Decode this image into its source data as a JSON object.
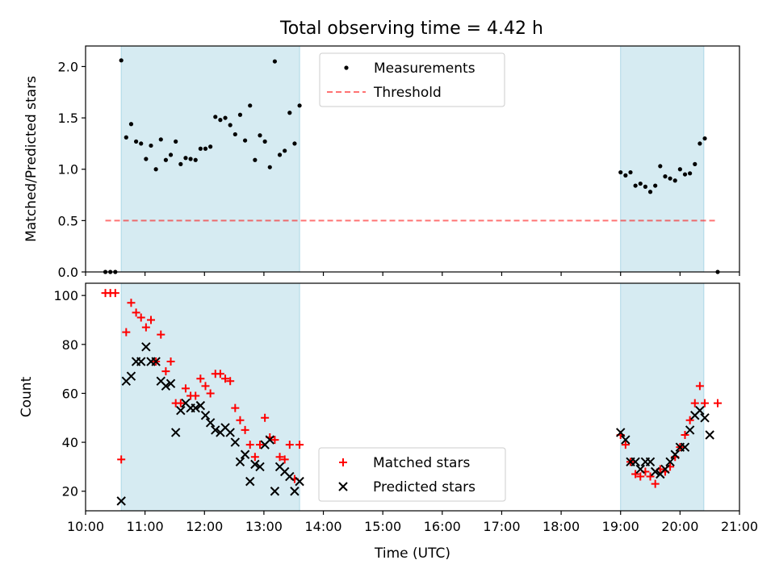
{
  "figure_title": "Total observing time = 4.42 h",
  "colors": {
    "shade": "#add8e6",
    "measurement": "#000000",
    "threshold": "#ff0000",
    "matched": "#ff0000",
    "predicted": "#000000"
  },
  "chart_data": [
    {
      "type": "scatter",
      "title": "Total observing time = 4.42 h",
      "xlabel": "",
      "ylabel": "Matched/Predicted stars",
      "xlim": [
        "10:00",
        "21:00"
      ],
      "ylim": [
        0,
        2.2
      ],
      "yticks": [
        "0.0",
        "0.5",
        "1.0",
        "1.5",
        "2.0"
      ],
      "shaded_intervals": [
        [
          "10:36",
          "13:36"
        ],
        [
          "19:00",
          "20:24"
        ]
      ],
      "legend_position": "upper center",
      "legend": [
        "Measurements",
        "Threshold"
      ],
      "threshold": {
        "name": "Threshold",
        "value": 0.5,
        "x_range": [
          "10:20",
          "20:38"
        ],
        "style": "dashed"
      },
      "series": [
        {
          "name": "Measurements",
          "points": [
            [
              "10:20",
              0.0
            ],
            [
              "10:25",
              0.0
            ],
            [
              "10:30",
              0.0
            ],
            [
              "10:36",
              2.06
            ],
            [
              "10:41",
              1.31
            ],
            [
              "10:46",
              1.44
            ],
            [
              "10:51",
              1.27
            ],
            [
              "10:56",
              1.25
            ],
            [
              "11:01",
              1.1
            ],
            [
              "11:06",
              1.23
            ],
            [
              "11:11",
              1.0
            ],
            [
              "11:16",
              1.29
            ],
            [
              "11:21",
              1.09
            ],
            [
              "11:26",
              1.14
            ],
            [
              "11:31",
              1.27
            ],
            [
              "11:36",
              1.05
            ],
            [
              "11:41",
              1.11
            ],
            [
              "11:46",
              1.1
            ],
            [
              "11:51",
              1.09
            ],
            [
              "11:56",
              1.2
            ],
            [
              "12:01",
              1.2
            ],
            [
              "12:06",
              1.22
            ],
            [
              "12:11",
              1.51
            ],
            [
              "12:16",
              1.48
            ],
            [
              "12:21",
              1.5
            ],
            [
              "12:26",
              1.43
            ],
            [
              "12:31",
              1.34
            ],
            [
              "12:36",
              1.53
            ],
            [
              "12:41",
              1.28
            ],
            [
              "12:46",
              1.62
            ],
            [
              "12:51",
              1.09
            ],
            [
              "12:56",
              1.33
            ],
            [
              "13:01",
              1.27
            ],
            [
              "13:06",
              1.02
            ],
            [
              "13:11",
              2.05
            ],
            [
              "13:16",
              1.14
            ],
            [
              "13:21",
              1.18
            ],
            [
              "13:26",
              1.55
            ],
            [
              "13:31",
              1.25
            ],
            [
              "13:36",
              1.62
            ],
            [
              "19:00",
              0.97
            ],
            [
              "19:05",
              0.94
            ],
            [
              "19:10",
              0.97
            ],
            [
              "19:15",
              0.84
            ],
            [
              "19:20",
              0.86
            ],
            [
              "19:25",
              0.83
            ],
            [
              "19:30",
              0.78
            ],
            [
              "19:35",
              0.84
            ],
            [
              "19:40",
              1.03
            ],
            [
              "19:45",
              0.93
            ],
            [
              "19:50",
              0.91
            ],
            [
              "19:55",
              0.89
            ],
            [
              "20:00",
              1.0
            ],
            [
              "20:05",
              0.95
            ],
            [
              "20:10",
              0.96
            ],
            [
              "20:15",
              1.05
            ],
            [
              "20:20",
              1.25
            ],
            [
              "20:25",
              1.3
            ],
            [
              "20:38",
              0.0
            ]
          ]
        }
      ]
    },
    {
      "type": "scatter",
      "title": "",
      "xlabel": "Time (UTC)",
      "ylabel": "Count",
      "xlim": [
        "10:00",
        "21:00"
      ],
      "ylim": [
        12,
        105
      ],
      "xticks": [
        "10:00",
        "11:00",
        "12:00",
        "13:00",
        "14:00",
        "15:00",
        "16:00",
        "17:00",
        "18:00",
        "19:00",
        "20:00",
        "21:00"
      ],
      "yticks": [
        "20",
        "40",
        "60",
        "80",
        "100"
      ],
      "shaded_intervals": [
        [
          "10:36",
          "13:36"
        ],
        [
          "19:00",
          "20:24"
        ]
      ],
      "legend_position": "lower center",
      "legend": [
        "Matched stars",
        "Predicted stars"
      ],
      "series": [
        {
          "name": "Matched stars",
          "marker": "+",
          "points": [
            [
              "10:20",
              101
            ],
            [
              "10:25",
              101
            ],
            [
              "10:30",
              101
            ],
            [
              "10:36",
              33
            ],
            [
              "10:41",
              85
            ],
            [
              "10:46",
              97
            ],
            [
              "10:51",
              93
            ],
            [
              "10:56",
              91
            ],
            [
              "11:01",
              87
            ],
            [
              "11:06",
              90
            ],
            [
              "11:11",
              73
            ],
            [
              "11:16",
              84
            ],
            [
              "11:21",
              69
            ],
            [
              "11:26",
              73
            ],
            [
              "11:31",
              56
            ],
            [
              "11:36",
              56
            ],
            [
              "11:41",
              62
            ],
            [
              "11:46",
              59
            ],
            [
              "11:51",
              59
            ],
            [
              "11:56",
              66
            ],
            [
              "12:01",
              63
            ],
            [
              "12:06",
              60
            ],
            [
              "12:11",
              68
            ],
            [
              "12:16",
              68
            ],
            [
              "12:21",
              66
            ],
            [
              "12:26",
              65
            ],
            [
              "12:31",
              54
            ],
            [
              "12:36",
              49
            ],
            [
              "12:41",
              45
            ],
            [
              "12:46",
              39
            ],
            [
              "12:51",
              34
            ],
            [
              "12:56",
              39
            ],
            [
              "13:01",
              50
            ],
            [
              "13:06",
              42
            ],
            [
              "13:11",
              41
            ],
            [
              "13:16",
              34
            ],
            [
              "13:21",
              33
            ],
            [
              "13:26",
              39
            ],
            [
              "13:31",
              25
            ],
            [
              "13:36",
              39
            ],
            [
              "19:00",
              43
            ],
            [
              "19:05",
              39
            ],
            [
              "19:10",
              32
            ],
            [
              "19:15",
              27
            ],
            [
              "19:20",
              26
            ],
            [
              "19:25",
              28
            ],
            [
              "19:30",
              26
            ],
            [
              "19:35",
              23
            ],
            [
              "19:40",
              29
            ],
            [
              "19:45",
              28
            ],
            [
              "19:50",
              30
            ],
            [
              "19:55",
              34
            ],
            [
              "20:00",
              38
            ],
            [
              "20:05",
              43
            ],
            [
              "20:10",
              49
            ],
            [
              "20:15",
              56
            ],
            [
              "20:20",
              63
            ],
            [
              "20:25",
              56
            ],
            [
              "20:38",
              56
            ]
          ]
        },
        {
          "name": "Predicted stars",
          "marker": "x",
          "points": [
            [
              "10:36",
              16
            ],
            [
              "10:41",
              65
            ],
            [
              "10:46",
              67
            ],
            [
              "10:51",
              73
            ],
            [
              "10:56",
              73
            ],
            [
              "11:01",
              79
            ],
            [
              "11:06",
              73
            ],
            [
              "11:11",
              73
            ],
            [
              "11:16",
              65
            ],
            [
              "11:21",
              63
            ],
            [
              "11:26",
              64
            ],
            [
              "11:31",
              44
            ],
            [
              "11:36",
              53
            ],
            [
              "11:41",
              56
            ],
            [
              "11:46",
              54
            ],
            [
              "11:51",
              54
            ],
            [
              "11:56",
              55
            ],
            [
              "12:01",
              51
            ],
            [
              "12:06",
              48
            ],
            [
              "12:11",
              45
            ],
            [
              "12:16",
              44
            ],
            [
              "12:21",
              46
            ],
            [
              "12:26",
              44
            ],
            [
              "12:31",
              40
            ],
            [
              "12:36",
              32
            ],
            [
              "12:41",
              35
            ],
            [
              "12:46",
              24
            ],
            [
              "12:51",
              31
            ],
            [
              "12:56",
              30
            ],
            [
              "13:01",
              39
            ],
            [
              "13:06",
              41
            ],
            [
              "13:11",
              20
            ],
            [
              "13:16",
              30
            ],
            [
              "13:21",
              28
            ],
            [
              "13:26",
              26
            ],
            [
              "13:31",
              20
            ],
            [
              "13:36",
              24
            ],
            [
              "19:00",
              44
            ],
            [
              "19:05",
              41
            ],
            [
              "19:10",
              32
            ],
            [
              "19:15",
              32
            ],
            [
              "19:20",
              29
            ],
            [
              "19:25",
              32
            ],
            [
              "19:30",
              32
            ],
            [
              "19:35",
              28
            ],
            [
              "19:40",
              27
            ],
            [
              "19:45",
              29
            ],
            [
              "19:50",
              32
            ],
            [
              "19:55",
              35
            ],
            [
              "20:00",
              38
            ],
            [
              "20:05",
              38
            ],
            [
              "20:10",
              45
            ],
            [
              "20:15",
              51
            ],
            [
              "20:20",
              53
            ],
            [
              "20:25",
              50
            ],
            [
              "20:30",
              43
            ]
          ]
        }
      ]
    }
  ]
}
